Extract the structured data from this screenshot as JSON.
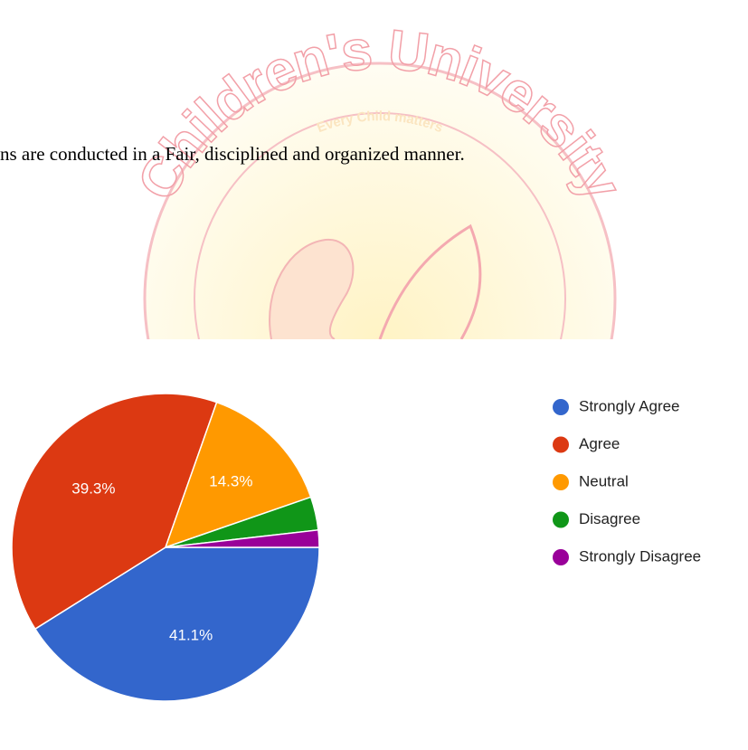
{
  "watermark": {
    "title": "Children's University",
    "subtitle": "Every Child matters"
  },
  "chart_data": {
    "type": "pie",
    "title": "ns are conducted in a Fair, disciplined and organized manner.",
    "categories": [
      "Strongly Agree",
      "Agree",
      "Neutral",
      "Disagree",
      "Strongly Disagree"
    ],
    "values": [
      41.1,
      39.3,
      14.3,
      3.5,
      1.8
    ],
    "value_labels": [
      "41.1%",
      "39.3%",
      "14.3%",
      null,
      null
    ],
    "colors": [
      "#3366cc",
      "#dc3912",
      "#ff9900",
      "#109618",
      "#990099"
    ],
    "legend": "right"
  }
}
